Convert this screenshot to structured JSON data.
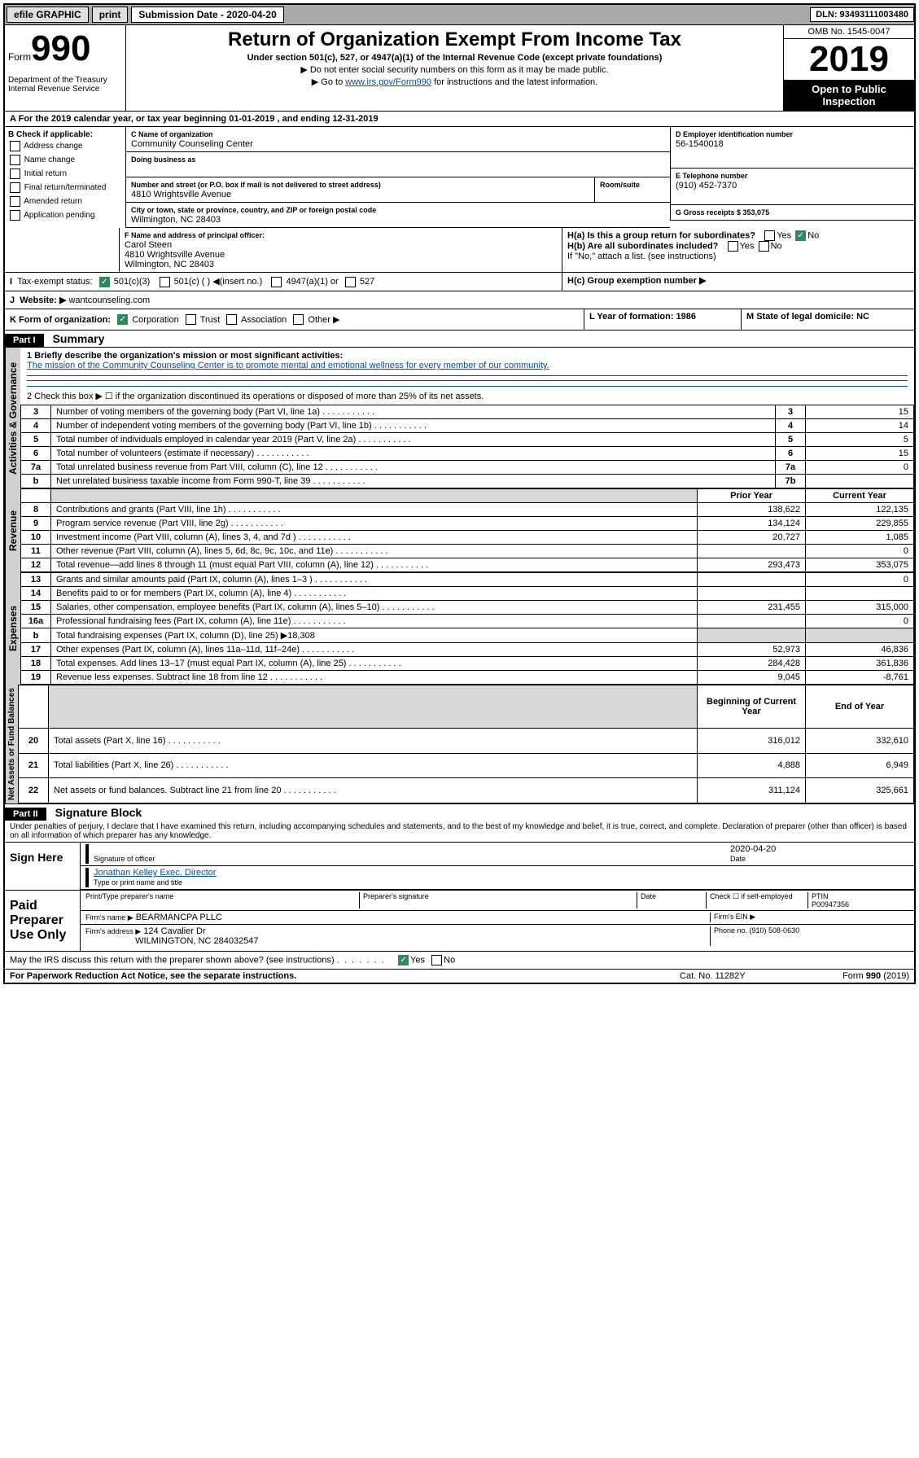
{
  "topbar": {
    "efile": "efile GRAPHIC",
    "print": "print",
    "subdate_label": "Submission Date - 2020-04-20",
    "dln_label": "DLN: 93493111003480"
  },
  "header": {
    "form_prefix": "Form",
    "form_num": "990",
    "dept1": "Department of the Treasury",
    "dept2": "Internal Revenue Service",
    "title": "Return of Organization Exempt From Income Tax",
    "sub1": "Under section 501(c), 527, or 4947(a)(1) of the Internal Revenue Code (except private foundations)",
    "sub2": "Do not enter social security numbers on this form as it may be made public.",
    "sub3_pre": "Go to ",
    "sub3_link": "www.irs.gov/Form990",
    "sub3_post": " for instructions and the latest information.",
    "omb": "OMB No. 1545-0047",
    "year": "2019",
    "open": "Open to Public Inspection"
  },
  "secA": {
    "period": "For the 2019 calendar year, or tax year beginning 01-01-2019   , and ending 12-31-2019",
    "b_label": "B Check if applicable:",
    "b_items": [
      "Address change",
      "Name change",
      "Initial return",
      "Final return/terminated",
      "Amended return",
      "Application pending"
    ],
    "c_label": "C Name of organization",
    "c_name": "Community Counseling Center",
    "dba_label": "Doing business as",
    "addr_label": "Number and street (or P.O. box if mail is not delivered to street address)",
    "room_label": "Room/suite",
    "addr": "4810 Wrightsville Avenue",
    "city_label": "City or town, state or province, country, and ZIP or foreign postal code",
    "city": "Wilmington, NC  28403",
    "d_label": "D Employer identification number",
    "ein": "56-1540018",
    "e_label": "E Telephone number",
    "phone": "(910) 452-7370",
    "g_label": "G Gross receipts $ 353,075",
    "f_label": "F  Name and address of principal officer:",
    "f_name": "Carol Steen",
    "f_addr1": "4810 Wrightsville Avenue",
    "f_addr2": "Wilmington, NC  28403",
    "ha": "H(a)  Is this a group return for subordinates?",
    "hb": "H(b)  Are all subordinates included?",
    "hb_note": "If \"No,\" attach a list. (see instructions)",
    "hc": "H(c)  Group exemption number ▶",
    "yes": "Yes",
    "no": "No",
    "i_label": "Tax-exempt status:",
    "i_501c3": "501(c)(3)",
    "i_501c": "501(c) (  ) ◀(insert no.)",
    "i_4947": "4947(a)(1) or",
    "i_527": "527",
    "j_label": "Website: ▶",
    "j_val": "wantcounseling.com",
    "k_label": "K Form of organization:",
    "k_corp": "Corporation",
    "k_trust": "Trust",
    "k_assoc": "Association",
    "k_other": "Other ▶",
    "l_label": "L Year of formation: 1986",
    "m_label": "M State of legal domicile: NC"
  },
  "part1": {
    "hdr": "Part I",
    "title": "Summary",
    "q1_label": "1  Briefly describe the organization's mission or most significant activities:",
    "q1_val": "The mission of the Community Counseling Center is to promote mental and emotional wellness for every member of our community.",
    "q2": "2   Check this box ▶ ☐  if the organization discontinued its operations or disposed of more than 25% of its net assets.",
    "vtab_ag": "Activities & Governance",
    "vtab_rev": "Revenue",
    "vtab_exp": "Expenses",
    "vtab_net": "Net Assets or Fund Balances",
    "col_prior": "Prior Year",
    "col_curr": "Current Year",
    "col_beg": "Beginning of Current Year",
    "col_end": "End of Year",
    "lines_ag": [
      {
        "n": "3",
        "d": "Number of voting members of the governing body (Part VI, line 1a)",
        "box": "3",
        "v": "15"
      },
      {
        "n": "4",
        "d": "Number of independent voting members of the governing body (Part VI, line 1b)",
        "box": "4",
        "v": "14"
      },
      {
        "n": "5",
        "d": "Total number of individuals employed in calendar year 2019 (Part V, line 2a)",
        "box": "5",
        "v": "5"
      },
      {
        "n": "6",
        "d": "Total number of volunteers (estimate if necessary)",
        "box": "6",
        "v": "15"
      },
      {
        "n": "7a",
        "d": "Total unrelated business revenue from Part VIII, column (C), line 12",
        "box": "7a",
        "v": "0"
      },
      {
        "n": "b",
        "d": "Net unrelated business taxable income from Form 990-T, line 39",
        "box": "7b",
        "v": ""
      }
    ],
    "lines_rev": [
      {
        "n": "8",
        "d": "Contributions and grants (Part VIII, line 1h)",
        "p": "138,622",
        "c": "122,135"
      },
      {
        "n": "9",
        "d": "Program service revenue (Part VIII, line 2g)",
        "p": "134,124",
        "c": "229,855"
      },
      {
        "n": "10",
        "d": "Investment income (Part VIII, column (A), lines 3, 4, and 7d )",
        "p": "20,727",
        "c": "1,085"
      },
      {
        "n": "11",
        "d": "Other revenue (Part VIII, column (A), lines 5, 6d, 8c, 9c, 10c, and 11e)",
        "p": "",
        "c": "0"
      },
      {
        "n": "12",
        "d": "Total revenue—add lines 8 through 11 (must equal Part VIII, column (A), line 12)",
        "p": "293,473",
        "c": "353,075"
      }
    ],
    "lines_exp": [
      {
        "n": "13",
        "d": "Grants and similar amounts paid (Part IX, column (A), lines 1–3 )",
        "p": "",
        "c": "0"
      },
      {
        "n": "14",
        "d": "Benefits paid to or for members (Part IX, column (A), line 4)",
        "p": "",
        "c": ""
      },
      {
        "n": "15",
        "d": "Salaries, other compensation, employee benefits (Part IX, column (A), lines 5–10)",
        "p": "231,455",
        "c": "315,000"
      },
      {
        "n": "16a",
        "d": "Professional fundraising fees (Part IX, column (A), line 11e)",
        "p": "",
        "c": "0"
      },
      {
        "n": "b",
        "d": "Total fundraising expenses (Part IX, column (D), line 25) ▶18,308",
        "p": null,
        "c": null
      },
      {
        "n": "17",
        "d": "Other expenses (Part IX, column (A), lines 11a–11d, 11f–24e)",
        "p": "52,973",
        "c": "46,836"
      },
      {
        "n": "18",
        "d": "Total expenses. Add lines 13–17 (must equal Part IX, column (A), line 25)",
        "p": "284,428",
        "c": "361,836"
      },
      {
        "n": "19",
        "d": "Revenue less expenses. Subtract line 18 from line 12",
        "p": "9,045",
        "c": "-8,761"
      }
    ],
    "lines_net": [
      {
        "n": "20",
        "d": "Total assets (Part X, line 16)",
        "p": "316,012",
        "c": "332,610"
      },
      {
        "n": "21",
        "d": "Total liabilities (Part X, line 26)",
        "p": "4,888",
        "c": "6,949"
      },
      {
        "n": "22",
        "d": "Net assets or fund balances. Subtract line 21 from line 20",
        "p": "311,124",
        "c": "325,661"
      }
    ]
  },
  "part2": {
    "hdr": "Part II",
    "title": "Signature Block",
    "perjury": "Under penalties of perjury, I declare that I have examined this return, including accompanying schedules and statements, and to the best of my knowledge and belief, it is true, correct, and complete. Declaration of preparer (other than officer) is based on all information of which preparer has any knowledge.",
    "sign_here": "Sign Here",
    "sig_officer": "Signature of officer",
    "date_label": "Date",
    "date_val": "2020-04-20",
    "typed_name": "Jonathan Kelley  Exec. Director",
    "typed_label": "Type or print name and title",
    "paid": "Paid Preparer Use Only",
    "prep_name_label": "Print/Type preparer's name",
    "prep_sig_label": "Preparer's signature",
    "check_self": "Check ☐ if self-employed",
    "ptin_label": "PTIN",
    "ptin": "P00947356",
    "firm_name_label": "Firm's name    ▶",
    "firm_name": "BEARMANCPA PLLC",
    "firm_ein_label": "Firm's EIN ▶",
    "firm_addr_label": "Firm's address ▶",
    "firm_addr1": "124 Cavalier Dr",
    "firm_addr2": "WILMINGTON, NC  284032547",
    "firm_phone_label": "Phone no. (910) 508-0630",
    "discuss": "May the IRS discuss this return with the preparer shown above? (see instructions)"
  },
  "footer": {
    "paperwork": "For Paperwork Reduction Act Notice, see the separate instructions.",
    "cat": "Cat. No. 11282Y",
    "form": "Form 990 (2019)"
  }
}
